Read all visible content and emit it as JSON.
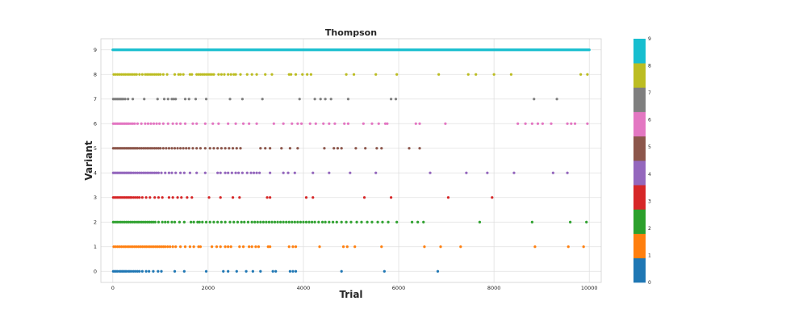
{
  "chart_data": {
    "type": "scatter",
    "title": "Thompson",
    "xlabel": "Trial",
    "ylabel": "Variant",
    "xlim": [
      -250,
      10250
    ],
    "ylim": [
      -0.45,
      9.45
    ],
    "x_ticks": [
      0,
      2000,
      4000,
      6000,
      8000,
      10000
    ],
    "x_tick_labels": [
      "0",
      "2000",
      "4000",
      "6000",
      "8000",
      "10000"
    ],
    "y_ticks": [
      0,
      1,
      2,
      3,
      4,
      5,
      6,
      7,
      8,
      9
    ],
    "y_tick_labels": [
      "0",
      "1",
      "2",
      "3",
      "4",
      "5",
      "6",
      "7",
      "8",
      "9"
    ],
    "grid": true,
    "colorbar": {
      "ticks": [
        "0",
        "1",
        "2",
        "3",
        "4",
        "5",
        "6",
        "7",
        "8",
        "9"
      ],
      "colors": [
        "#1f77b4",
        "#ff7f0e",
        "#2ca02c",
        "#d62728",
        "#9467bd",
        "#8c564b",
        "#e377c2",
        "#7f7f7f",
        "#bcbd22",
        "#17becf"
      ]
    },
    "series": [
      {
        "variant": 0,
        "color": "#1f77b4",
        "x": [
          10,
          40,
          70,
          100,
          140,
          170,
          200,
          230,
          260,
          290,
          330,
          360,
          400,
          440,
          480,
          520,
          560,
          620,
          700,
          760,
          850,
          950,
          1020,
          1300,
          1500,
          1960,
          2320,
          2420,
          2600,
          2800,
          2940,
          3100,
          3360,
          3420,
          3720,
          3780,
          3840,
          4800,
          5700,
          6820
        ]
      },
      {
        "variant": 1,
        "color": "#ff7f0e",
        "x": [
          20,
          60,
          100,
          140,
          180,
          220,
          260,
          300,
          340,
          380,
          420,
          460,
          500,
          540,
          580,
          620,
          660,
          700,
          740,
          780,
          820,
          860,
          900,
          940,
          980,
          1020,
          1060,
          1100,
          1150,
          1200,
          1260,
          1320,
          1420,
          1520,
          1620,
          1700,
          1800,
          1840,
          2080,
          2180,
          2260,
          2360,
          2420,
          2480,
          2660,
          2740,
          2860,
          2920,
          3000,
          3060,
          3260,
          3300,
          3700,
          3780,
          3840,
          4340,
          4840,
          4920,
          5080,
          5640,
          6540,
          6880,
          7300,
          8860,
          9560,
          9880
        ]
      },
      {
        "variant": 2,
        "color": "#2ca02c",
        "x": [
          10,
          50,
          90,
          130,
          170,
          210,
          250,
          290,
          330,
          370,
          410,
          450,
          490,
          530,
          570,
          610,
          650,
          690,
          730,
          770,
          810,
          850,
          890,
          960,
          1040,
          1100,
          1160,
          1240,
          1300,
          1400,
          1500,
          1640,
          1700,
          1780,
          1820,
          1880,
          1960,
          2040,
          2120,
          2200,
          2280,
          2360,
          2460,
          2540,
          2620,
          2700,
          2760,
          2840,
          2920,
          2980,
          3040,
          3100,
          3160,
          3220,
          3280,
          3340,
          3400,
          3460,
          3520,
          3580,
          3640,
          3700,
          3760,
          3820,
          3880,
          3940,
          4000,
          4060,
          4120,
          4180,
          4240,
          4320,
          4400,
          4460,
          4540,
          4620,
          4700,
          4800,
          4900,
          5000,
          5120,
          5220,
          5340,
          5440,
          5560,
          5660,
          5780,
          5960,
          6280,
          6400,
          6520,
          7700,
          8800,
          9600,
          9940
        ]
      },
      {
        "variant": 3,
        "color": "#d62728",
        "x": [
          10,
          40,
          70,
          100,
          130,
          160,
          190,
          220,
          250,
          280,
          310,
          340,
          370,
          400,
          440,
          480,
          520,
          560,
          620,
          700,
          780,
          880,
          960,
          1040,
          1180,
          1260,
          1360,
          1440,
          1560,
          1660,
          2020,
          2260,
          2520,
          2660,
          3240,
          3300,
          4060,
          4200,
          5280,
          5840,
          7040,
          7960
        ]
      },
      {
        "variant": 4,
        "color": "#9467bd",
        "x": [
          10,
          40,
          70,
          100,
          130,
          160,
          190,
          220,
          250,
          280,
          310,
          340,
          370,
          400,
          440,
          480,
          520,
          560,
          600,
          640,
          680,
          720,
          760,
          800,
          840,
          880,
          920,
          960,
          1020,
          1100,
          1180,
          1240,
          1320,
          1420,
          1500,
          1620,
          1760,
          1940,
          2200,
          2260,
          2360,
          2420,
          2500,
          2580,
          2640,
          2720,
          2820,
          2900,
          2960,
          3020,
          3080,
          3300,
          3580,
          3680,
          3820,
          4200,
          4540,
          4980,
          5520,
          6660,
          7420,
          7860,
          8420,
          9240,
          9540
        ]
      },
      {
        "variant": 5,
        "color": "#8c564b",
        "x": [
          10,
          40,
          70,
          100,
          130,
          160,
          190,
          220,
          250,
          280,
          310,
          340,
          370,
          400,
          430,
          460,
          490,
          520,
          560,
          600,
          640,
          680,
          720,
          760,
          800,
          840,
          880,
          920,
          960,
          1000,
          1060,
          1120,
          1180,
          1240,
          1300,
          1360,
          1420,
          1480,
          1540,
          1600,
          1680,
          1760,
          1840,
          1940,
          2040,
          2120,
          2200,
          2280,
          2360,
          2440,
          2520,
          2600,
          2680,
          3100,
          3200,
          3300,
          3540,
          3720,
          3880,
          4440,
          4640,
          4720,
          4800,
          5100,
          5300,
          5540,
          5640,
          6220,
          6440
        ]
      },
      {
        "variant": 6,
        "color": "#e377c2",
        "x": [
          10,
          40,
          70,
          100,
          130,
          160,
          190,
          220,
          250,
          280,
          310,
          340,
          380,
          420,
          460,
          520,
          600,
          680,
          740,
          800,
          860,
          920,
          980,
          1060,
          1160,
          1260,
          1340,
          1420,
          1520,
          1680,
          1760,
          1940,
          2100,
          2220,
          2420,
          2580,
          2740,
          2860,
          3020,
          3380,
          3580,
          3760,
          3880,
          3960,
          4140,
          4260,
          4420,
          4540,
          4660,
          4860,
          4940,
          5260,
          5440,
          5580,
          5720,
          5760,
          6360,
          6440,
          6980,
          8500,
          8660,
          8800,
          8920,
          9020,
          9200,
          9540,
          9620,
          9700,
          9960
        ]
      },
      {
        "variant": 7,
        "color": "#7f7f7f",
        "x": [
          10,
          40,
          70,
          100,
          130,
          160,
          190,
          220,
          260,
          320,
          420,
          660,
          940,
          1080,
          1160,
          1240,
          1280,
          1320,
          1520,
          1600,
          1740,
          1960,
          2460,
          2720,
          3140,
          3920,
          4240,
          4360,
          4460,
          4580,
          4940,
          5840,
          5940,
          8840,
          9320
        ]
      },
      {
        "variant": 8,
        "color": "#bcbd22",
        "x": [
          20,
          60,
          100,
          140,
          180,
          220,
          260,
          300,
          340,
          380,
          420,
          460,
          500,
          560,
          620,
          680,
          720,
          760,
          800,
          840,
          880,
          920,
          960,
          1000,
          1060,
          1140,
          1300,
          1380,
          1420,
          1480,
          1620,
          1660,
          1760,
          1800,
          1840,
          1880,
          1920,
          1960,
          2000,
          2040,
          2080,
          2120,
          2220,
          2280,
          2340,
          2420,
          2480,
          2540,
          2580,
          2680,
          2820,
          2920,
          3020,
          3200,
          3340,
          3700,
          3740,
          3840,
          3980,
          4080,
          4160,
          4900,
          5060,
          5520,
          5960,
          6840,
          7460,
          7620,
          8000,
          8360,
          9820,
          9960
        ]
      },
      {
        "variant": 9,
        "color": "#17becf",
        "x_range": [
          0,
          10000
        ],
        "note_dense": "continuous"
      }
    ]
  }
}
